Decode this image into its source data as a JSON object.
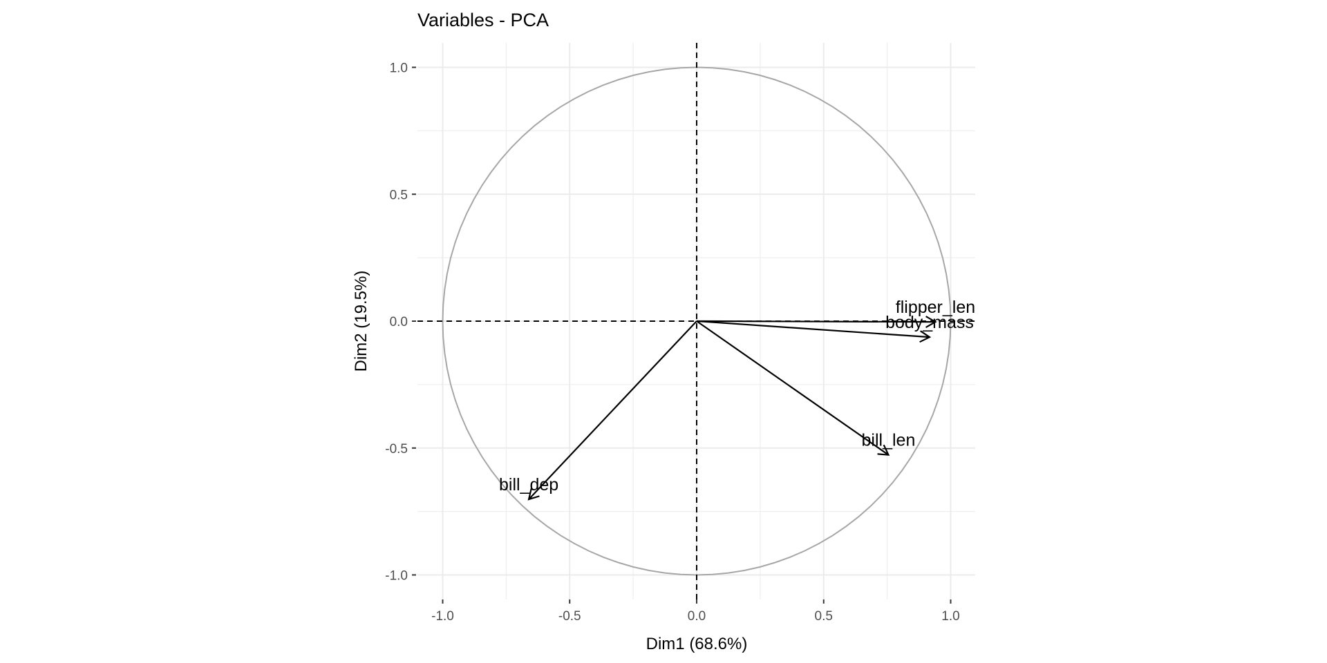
{
  "chart_data": {
    "type": "scatter",
    "title": "Variables - PCA",
    "xlabel": "Dim1 (68.6%)",
    "ylabel": "Dim2 (19.5%)",
    "xlim": [
      -1.1,
      1.1
    ],
    "ylim": [
      -1.1,
      1.1
    ],
    "xticks": [
      -1.0,
      -0.5,
      0.0,
      0.5,
      1.0
    ],
    "yticks": [
      -1.0,
      -0.5,
      0.0,
      0.5,
      1.0
    ],
    "xtick_labels": [
      "-1.0",
      "-0.5",
      "0.0",
      "0.5",
      "1.0"
    ],
    "ytick_labels": [
      "-1.0",
      "-0.5",
      "0.0",
      "0.5",
      "1.0"
    ],
    "grid": true,
    "correlation_circle": true,
    "reference_lines": {
      "x": 0,
      "y": 0,
      "style": "dashed"
    },
    "colors": {
      "arrows": "#000000",
      "circle": "#A6A6A6",
      "grid": "#EBEBEB"
    },
    "series": [
      {
        "name": "flipper_len",
        "x": 0.94,
        "y": -0.003
      },
      {
        "name": "body_mass",
        "x": 0.917,
        "y": -0.063
      },
      {
        "name": "bill_len",
        "x": 0.755,
        "y": -0.527
      },
      {
        "name": "bill_dep",
        "x": -0.661,
        "y": -0.702
      }
    ]
  }
}
